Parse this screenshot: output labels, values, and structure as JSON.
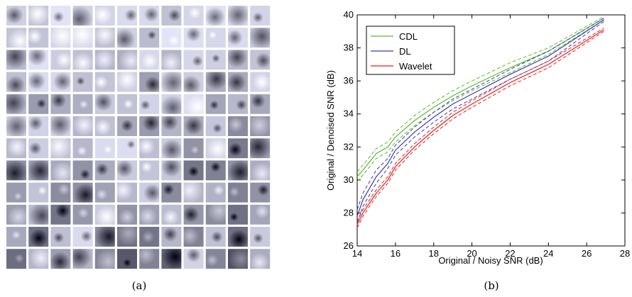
{
  "caption_a": "(a)",
  "chart_data": {
    "type": "line",
    "caption": "(b)",
    "xlabel": "Original / Noisy SNR (dB)",
    "ylabel": "Original / Denoised SNR (dB)",
    "x": [
      14,
      14.3,
      15,
      15.6,
      16,
      17,
      18,
      19,
      20,
      22,
      24,
      26.9
    ],
    "series": [
      {
        "name": "CDL",
        "color": "#5cb82e",
        "values": [
          30.2,
          30.6,
          31.6,
          32.0,
          32.6,
          33.6,
          34.4,
          35.1,
          35.7,
          36.8,
          37.8,
          39.8
        ],
        "upper": [
          30.5,
          30.9,
          31.9,
          32.3,
          32.9,
          33.9,
          34.7,
          35.4,
          36.0,
          37.1,
          38.0,
          39.9
        ],
        "lower": [
          29.9,
          30.3,
          31.3,
          31.7,
          32.3,
          33.3,
          34.1,
          34.8,
          35.4,
          36.5,
          37.6,
          39.7
        ]
      },
      {
        "name": "DL",
        "color": "#3b3ba8",
        "values": [
          27.8,
          28.8,
          30.2,
          31.0,
          31.8,
          32.9,
          33.8,
          34.6,
          35.2,
          36.4,
          37.5,
          39.7
        ],
        "upper": [
          28.2,
          29.2,
          30.6,
          31.3,
          32.1,
          33.2,
          34.1,
          34.9,
          35.5,
          36.7,
          37.8,
          39.8
        ],
        "lower": [
          27.4,
          28.4,
          29.8,
          30.7,
          31.5,
          32.6,
          33.5,
          34.3,
          34.9,
          36.1,
          37.2,
          39.6
        ]
      },
      {
        "name": "Wavelet",
        "color": "#e02020",
        "values": [
          27.3,
          28.0,
          29.2,
          30.0,
          30.8,
          32.0,
          33.0,
          33.9,
          34.6,
          35.9,
          37.0,
          39.1
        ],
        "upper": [
          27.5,
          28.2,
          29.4,
          30.2,
          31.0,
          32.2,
          33.2,
          34.1,
          34.8,
          36.1,
          37.2,
          39.2
        ],
        "lower": [
          27.1,
          27.8,
          29.0,
          29.8,
          30.6,
          31.8,
          32.8,
          33.7,
          34.4,
          35.7,
          36.8,
          39.0
        ]
      }
    ],
    "xlim": [
      14,
      28
    ],
    "xticks": [
      14,
      16,
      18,
      20,
      22,
      24,
      26,
      28
    ],
    "ylim": [
      26,
      40
    ],
    "yticks": [
      26,
      28,
      30,
      32,
      34,
      36,
      38,
      40
    ],
    "legend": "upper left"
  }
}
